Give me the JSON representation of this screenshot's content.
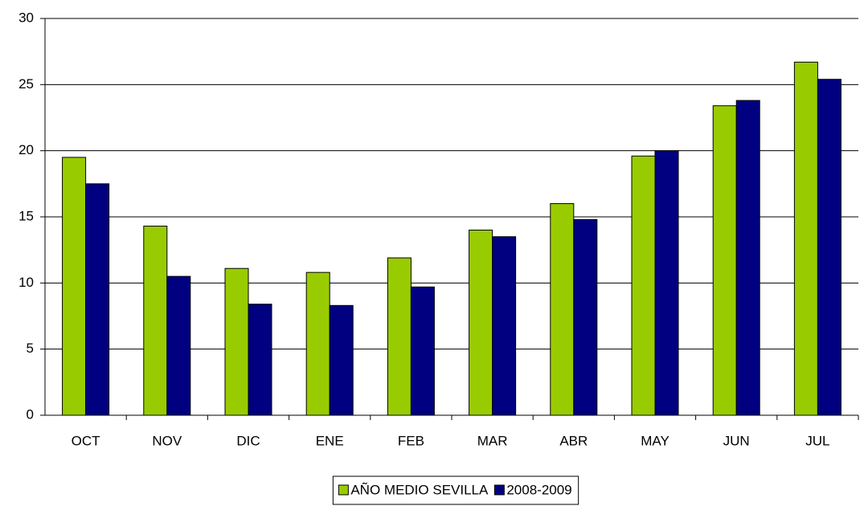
{
  "chart_data": {
    "type": "bar",
    "categories": [
      "OCT",
      "NOV",
      "DIC",
      "ENE",
      "FEB",
      "MAR",
      "ABR",
      "MAY",
      "JUN",
      "JUL"
    ],
    "series": [
      {
        "name": "AÑO MEDIO SEVILLA",
        "color": "#99cc00",
        "values": [
          19.5,
          14.3,
          11.1,
          10.8,
          11.9,
          14.0,
          16.0,
          19.6,
          23.4,
          26.7
        ]
      },
      {
        "name": "2008-2009",
        "color": "#000080",
        "values": [
          17.5,
          10.5,
          8.4,
          8.3,
          9.7,
          13.5,
          14.8,
          20.0,
          23.8,
          25.4
        ]
      }
    ],
    "ylim": [
      0,
      30
    ],
    "yticks": [
      0,
      5,
      10,
      15,
      20,
      25,
      30
    ],
    "grid": true,
    "legend": "bottom"
  }
}
